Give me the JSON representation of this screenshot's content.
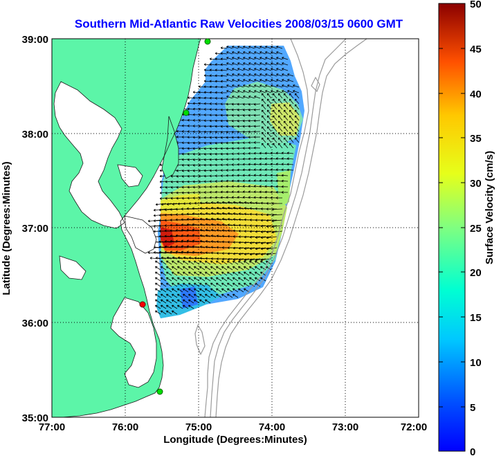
{
  "title": "Southern Mid-Atlantic Raw Velocities 2008/03/15 0600 GMT",
  "xaxis": {
    "label": "Longitude (Degrees:Minutes)",
    "ticks": [
      "77:00",
      "76:00",
      "75:00",
      "74:00",
      "73:00",
      "72:00"
    ]
  },
  "yaxis": {
    "label": "Latitude (Degrees:Minutes)",
    "ticks": [
      "39:00",
      "38:00",
      "37:00",
      "36:00",
      "35:00"
    ]
  },
  "colorbar": {
    "label": "Surface Velocity (cm/s)",
    "ticks": [
      "50",
      "45",
      "40",
      "35",
      "30",
      "25",
      "20",
      "15",
      "10",
      "5",
      "0"
    ],
    "colormap": "jet",
    "range": [
      0,
      50
    ]
  },
  "colors": {
    "land": "#5cf5a8",
    "title": "#0000ff",
    "bathymetry": "#9a9a9a",
    "station_active": "#00dd00",
    "station_inactive": "#ff0000"
  },
  "map": {
    "lon_range": [
      -77,
      -72
    ],
    "lat_range": [
      35,
      39
    ]
  },
  "stations": [
    {
      "lon": -75.12,
      "lat": 38.97,
      "status": "active"
    },
    {
      "lon": -75.17,
      "lat": 38.22,
      "status": "active"
    },
    {
      "lon": -75.75,
      "lat": 36.19,
      "status": "inactive"
    },
    {
      "lon": -75.5,
      "lat": 35.27,
      "status": "active"
    }
  ]
}
